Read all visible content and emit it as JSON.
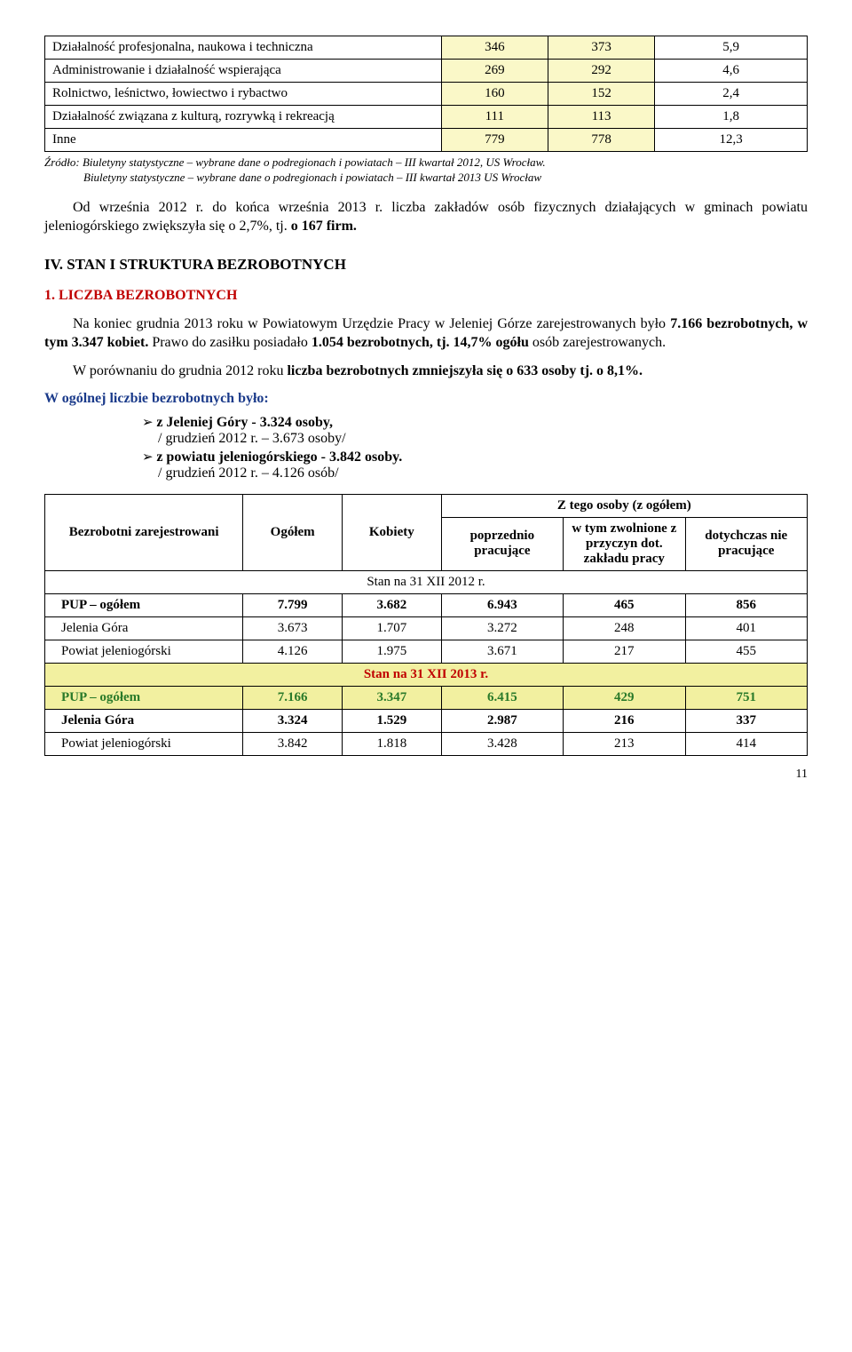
{
  "table1": {
    "rows": [
      {
        "label": "Działalność profesjonalna, naukowa i techniczna",
        "v1": "346",
        "v2": "373",
        "v3": "5,9",
        "hl": [
          false,
          true,
          true,
          false
        ]
      },
      {
        "label": "Administrowanie i działalność wspierająca",
        "v1": "269",
        "v2": "292",
        "v3": "4,6",
        "hl": [
          false,
          true,
          true,
          false
        ]
      },
      {
        "label": "Rolnictwo, leśnictwo, łowiectwo i rybactwo",
        "v1": "160",
        "v2": "152",
        "v3": "2,4",
        "hl": [
          false,
          true,
          true,
          false
        ]
      },
      {
        "label": "Działalność związana z kulturą, rozrywką i rekreacją",
        "v1": "111",
        "v2": "113",
        "v3": "1,8",
        "hl": [
          false,
          true,
          true,
          false
        ]
      },
      {
        "label": "Inne",
        "v1": "779",
        "v2": "778",
        "v3": "12,3",
        "hl": [
          false,
          true,
          true,
          false
        ]
      }
    ],
    "col_widths": [
      "52%",
      "14%",
      "14%",
      "20%"
    ],
    "hl_color": "#faf8c8"
  },
  "source1": "Źródło: Biuletyny statystyczne – wybrane dane o podregionach i powiatach – III kwartał 2012, US Wrocław.",
  "source2": "Biuletyny statystyczne – wybrane dane o podregionach i powiatach – III kwartał 2013  US Wrocław",
  "para1": {
    "pre": "Od września 2012 r. do końca września 2013 r. liczba zakładów osób fizycznych działających w gminach powiatu jeleniogórskiego zwiększyła się o 2,7%, tj. ",
    "bold": "o 167 firm."
  },
  "heading_iv": "IV. STAN I STRUKTURA BEZROBOTNYCH",
  "heading_1": "1. LICZBA BEZROBOTNYCH",
  "para2": {
    "t1": "Na koniec grudnia 2013 roku w Powiatowym Urzędzie Pracy w Jeleniej Górze zarejestrowanych było ",
    "b1": "7.166 bezrobotnych, w tym 3.347 kobiet.",
    "t2": " Prawo do zasiłku posiadało ",
    "b2": "1.054 bezrobotnych, tj. 14,7% ogółu",
    "t3": " osób zarejestrowanych."
  },
  "para3": {
    "t1": "W porównaniu do grudnia 2012 roku ",
    "b1": "liczba bezrobotnych zmniejszyła się o 633 osoby tj. o 8,1%."
  },
  "para4": "W ogólnej liczbie bezrobotnych było:",
  "bullets": [
    {
      "b": "z Jeleniej Góry    -  3.324 osoby,",
      "sub": "/ grudzień 2012 r. – 3.673 osoby/"
    },
    {
      "b": "z powiatu jeleniogórskiego  -  3.842 osoby.",
      "sub": "/ grudzień 2012 r. – 4.126 osób/"
    }
  ],
  "table2": {
    "head": {
      "c1": "Bezrobotni zarejestrowani",
      "c2": "Ogółem",
      "c3": "Kobiety",
      "ztop": "Z tego osoby  (z ogółem)",
      "z1": "poprzednio pracujące",
      "z2": "w tym zwolnione z przyczyn dot. zakładu pracy",
      "z3": "dotychczas nie pracujące"
    },
    "sect1": "Stan na 31 XII 2012 r.",
    "rows1": [
      {
        "label": "PUP  – ogółem",
        "bold": true,
        "v": [
          "7.799",
          "3.682",
          "6.943",
          "465",
          "856"
        ]
      },
      {
        "label": "Jelenia Góra",
        "v": [
          "3.673",
          "1.707",
          "3.272",
          "248",
          "401"
        ]
      },
      {
        "label": "Powiat jeleniogórski",
        "v": [
          "4.126",
          "1.975",
          "3.671",
          "217",
          "455"
        ]
      }
    ],
    "sect2": "Stan na 31 XII 2013 r.",
    "rows2": [
      {
        "label": "PUP  – ogółem",
        "green": true,
        "v": [
          "7.166",
          "3.347",
          "6.415",
          "429",
          "751"
        ]
      },
      {
        "label": "Jelenia Góra",
        "bold": true,
        "v": [
          "3.324",
          "1.529",
          "2.987",
          "216",
          "337"
        ]
      },
      {
        "label": "Powiat jeleniogórski",
        "v": [
          "3.842",
          "1.818",
          "3.428",
          "213",
          "414"
        ]
      }
    ],
    "col_widths": [
      "26%",
      "13%",
      "13%",
      "16%",
      "16%",
      "16%"
    ]
  },
  "pagenum": "11",
  "colors": {
    "hl": "#faf8c8",
    "hl2": "#f2f0a0",
    "red": "#c00000",
    "green": "#2a7a2a",
    "blue": "#1a3a8a"
  }
}
